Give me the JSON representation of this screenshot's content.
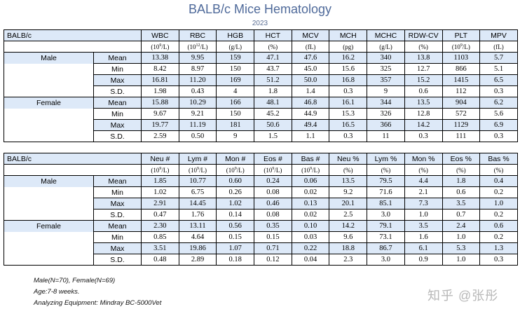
{
  "title": "BALB/c Mice Hematology",
  "year": "2023",
  "table1": {
    "corner": "BALB/c",
    "columns": [
      {
        "name": "WBC",
        "unit_base": "(10",
        "unit_sup": "9",
        "unit_tail": "/L)"
      },
      {
        "name": "RBC",
        "unit_base": "(10",
        "unit_sup": "12",
        "unit_tail": "/L)"
      },
      {
        "name": "HGB",
        "unit_base": "(g/L)",
        "unit_sup": "",
        "unit_tail": ""
      },
      {
        "name": "HCT",
        "unit_base": "(%)",
        "unit_sup": "",
        "unit_tail": ""
      },
      {
        "name": "MCV",
        "unit_base": "(fL)",
        "unit_sup": "",
        "unit_tail": ""
      },
      {
        "name": "MCH",
        "unit_base": "(pg)",
        "unit_sup": "",
        "unit_tail": ""
      },
      {
        "name": "MCHC",
        "unit_base": "(g/L)",
        "unit_sup": "",
        "unit_tail": ""
      },
      {
        "name": "RDW-CV",
        "unit_base": "(%)",
        "unit_sup": "",
        "unit_tail": ""
      },
      {
        "name": "PLT",
        "unit_base": "(10",
        "unit_sup": "9",
        "unit_tail": "/L)"
      },
      {
        "name": "MPV",
        "unit_base": "(fL)",
        "unit_sup": "",
        "unit_tail": ""
      }
    ],
    "groups": [
      {
        "sex": "Male",
        "rows": [
          {
            "stat": "Mean",
            "values": [
              "13.38",
              "9.95",
              "159",
              "47.1",
              "47.6",
              "16.2",
              "340",
              "13.8",
              "1103",
              "5.7"
            ]
          },
          {
            "stat": "Min",
            "values": [
              "8.42",
              "8.97",
              "150",
              "43.7",
              "45.0",
              "15.6",
              "325",
              "12.7",
              "866",
              "5.1"
            ]
          },
          {
            "stat": "Max",
            "values": [
              "16.81",
              "11.20",
              "169",
              "51.2",
              "50.0",
              "16.8",
              "357",
              "15.2",
              "1415",
              "6.5"
            ]
          },
          {
            "stat": "S.D.",
            "values": [
              "1.98",
              "0.43",
              "4",
              "1.8",
              "1.4",
              "0.3",
              "9",
              "0.6",
              "112",
              "0.3"
            ]
          }
        ]
      },
      {
        "sex": "Female",
        "rows": [
          {
            "stat": "Mean",
            "values": [
              "15.88",
              "10.29",
              "166",
              "48.1",
              "46.8",
              "16.1",
              "344",
              "13.5",
              "904",
              "6.2"
            ]
          },
          {
            "stat": "Min",
            "values": [
              "9.67",
              "9.21",
              "150",
              "45.2",
              "44.9",
              "15.3",
              "326",
              "12.8",
              "572",
              "5.6"
            ]
          },
          {
            "stat": "Max",
            "values": [
              "19.77",
              "11.19",
              "181",
              "50.6",
              "49.4",
              "16.5",
              "366",
              "14.2",
              "1129",
              "6.9"
            ]
          },
          {
            "stat": "S.D.",
            "values": [
              "2.59",
              "0.50",
              "9",
              "1.5",
              "1.1",
              "0.3",
              "11",
              "0.3",
              "111",
              "0.3"
            ]
          }
        ]
      }
    ]
  },
  "table2": {
    "corner": "BALB/c",
    "columns": [
      {
        "name": "Neu #",
        "unit_base": "(10",
        "unit_sup": "9",
        "unit_tail": "/L)"
      },
      {
        "name": "Lym #",
        "unit_base": "(10",
        "unit_sup": "9",
        "unit_tail": "/L)"
      },
      {
        "name": "Mon #",
        "unit_base": "(10",
        "unit_sup": "9",
        "unit_tail": "/L)"
      },
      {
        "name": "Eos #",
        "unit_base": "(10",
        "unit_sup": "9",
        "unit_tail": "/L)"
      },
      {
        "name": "Bas #",
        "unit_base": "(10",
        "unit_sup": "9",
        "unit_tail": "/L)"
      },
      {
        "name": "Neu %",
        "unit_base": "(%)",
        "unit_sup": "",
        "unit_tail": ""
      },
      {
        "name": "Lym %",
        "unit_base": "(%)",
        "unit_sup": "",
        "unit_tail": ""
      },
      {
        "name": "Mon %",
        "unit_base": "(%)",
        "unit_sup": "",
        "unit_tail": ""
      },
      {
        "name": "Eos %",
        "unit_base": "(%)",
        "unit_sup": "",
        "unit_tail": ""
      },
      {
        "name": "Bas %",
        "unit_base": "(%)",
        "unit_sup": "",
        "unit_tail": ""
      }
    ],
    "groups": [
      {
        "sex": "Male",
        "rows": [
          {
            "stat": "Mean",
            "values": [
              "1.85",
              "10.77",
              "0.60",
              "0.24",
              "0.06",
              "13.5",
              "79.5",
              "4.4",
              "1.8",
              "0.4"
            ]
          },
          {
            "stat": "Min",
            "values": [
              "1.02",
              "6.75",
              "0.26",
              "0.08",
              "0.02",
              "9.2",
              "71.6",
              "2.1",
              "0.6",
              "0.2"
            ]
          },
          {
            "stat": "Max",
            "values": [
              "2.91",
              "14.45",
              "1.02",
              "0.46",
              "0.13",
              "20.1",
              "85.1",
              "7.3",
              "3.5",
              "1.0"
            ]
          },
          {
            "stat": "S.D.",
            "values": [
              "0.47",
              "1.76",
              "0.14",
              "0.08",
              "0.02",
              "2.5",
              "3.0",
              "1.0",
              "0.7",
              "0.2"
            ]
          }
        ]
      },
      {
        "sex": "Female",
        "rows": [
          {
            "stat": "Mean",
            "values": [
              "2.30",
              "13.11",
              "0.56",
              "0.35",
              "0.10",
              "14.2",
              "79.1",
              "3.5",
              "2.4",
              "0.6"
            ]
          },
          {
            "stat": "Min",
            "values": [
              "0.85",
              "4.64",
              "0.15",
              "0.15",
              "0.03",
              "9.6",
              "73.1",
              "1.6",
              "1.0",
              "0.2"
            ]
          },
          {
            "stat": "Max",
            "values": [
              "3.51",
              "19.86",
              "1.07",
              "0.71",
              "0.22",
              "18.8",
              "86.7",
              "6.1",
              "5.3",
              "1.3"
            ]
          },
          {
            "stat": "S.D.",
            "values": [
              "0.48",
              "2.89",
              "0.18",
              "0.12",
              "0.04",
              "2.3",
              "3.0",
              "0.9",
              "1.0",
              "0.3"
            ]
          }
        ]
      }
    ]
  },
  "notes": [
    "Male(N=70), Female(N=69)",
    "Age:7-8 weeks.",
    "Analyzing Equipment: Mindray BC-5000Vet"
  ],
  "watermark": "知乎 @张彤",
  "colors": {
    "title": "#4f6a9a",
    "shade": "#dde9f8",
    "border": "#000000"
  }
}
